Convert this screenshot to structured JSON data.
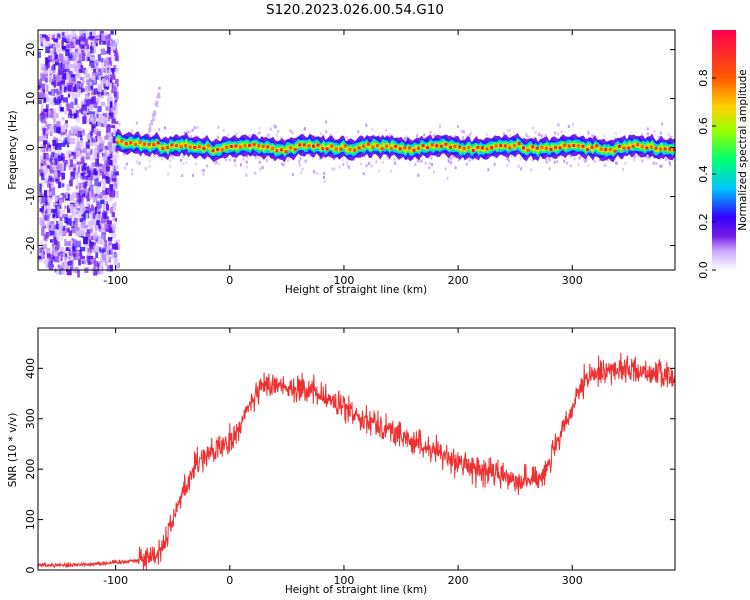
{
  "title": "S120.2023.026.00.54.G10",
  "chart_data": [
    {
      "type": "heatmap",
      "xlabel": "Height of straight line (km)",
      "ylabel": "Frequency (Hz)",
      "xlim": [
        -168,
        390
      ],
      "ylim": [
        -25,
        24
      ],
      "xticks": [
        -100,
        0,
        100,
        200,
        300
      ],
      "yticks": [
        -20,
        -10,
        0,
        10,
        20
      ],
      "grid": false,
      "colorbar": {
        "label": "Normalized spectral amplitude",
        "range": [
          0,
          1
        ],
        "ticks": [
          0.0,
          0.2,
          0.4,
          0.6,
          0.8
        ],
        "colors": [
          "#ffffff",
          "#c9a6ff",
          "#7a1fe6",
          "#2f00ff",
          "#00c8ff",
          "#00ff70",
          "#9bff00",
          "#ffd000",
          "#ff5a00",
          "#ff0050"
        ]
      },
      "noise_region_x": [
        -168,
        -100
      ],
      "signal_line": {
        "frequency_hz": 0,
        "x_range": [
          -100,
          390
        ],
        "peak_amplitude": 0.95,
        "width_hz": 2
      }
    },
    {
      "type": "line",
      "xlabel": "Height of straight line (km)",
      "ylabel": "SNR (10 * v/v)",
      "xlim": [
        -168,
        390
      ],
      "ylim": [
        0,
        480
      ],
      "xticks": [
        -100,
        0,
        100,
        200,
        300
      ],
      "yticks": [
        0,
        100,
        200,
        300,
        400
      ],
      "grid": false,
      "series": [
        {
          "color": "#f03030",
          "x": [
            -168,
            -140,
            -120,
            -100,
            -80,
            -65,
            -58,
            -52,
            -45,
            -40,
            -35,
            -30,
            -25,
            -20,
            -10,
            0,
            10,
            20,
            30,
            40,
            50,
            60,
            70,
            80,
            90,
            100,
            110,
            120,
            130,
            140,
            150,
            160,
            170,
            180,
            190,
            200,
            210,
            220,
            230,
            240,
            250,
            260,
            265,
            270,
            275,
            280,
            290,
            300,
            310,
            320,
            330,
            340,
            350,
            360,
            370,
            380,
            390
          ],
          "y": [
            10,
            10,
            12,
            15,
            20,
            30,
            50,
            90,
            130,
            160,
            185,
            210,
            220,
            230,
            240,
            250,
            290,
            340,
            365,
            370,
            365,
            360,
            355,
            345,
            335,
            320,
            310,
            300,
            290,
            278,
            265,
            255,
            245,
            235,
            225,
            215,
            205,
            198,
            192,
            186,
            182,
            178,
            178,
            183,
            195,
            215,
            265,
            320,
            370,
            390,
            395,
            400,
            398,
            395,
            392,
            385,
            380
          ]
        }
      ]
    }
  ]
}
